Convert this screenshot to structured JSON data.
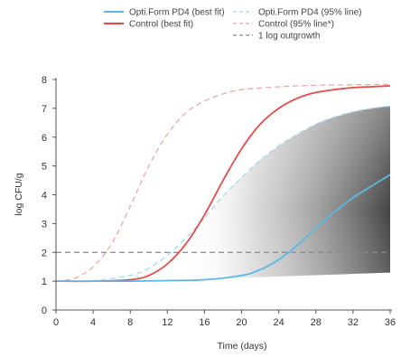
{
  "chart_data": {
    "type": "line",
    "xlabel": "Time (days)",
    "ylabel": "log CFU/g",
    "xlim": [
      0,
      36
    ],
    "ylim": [
      0,
      8
    ],
    "xticks": [
      "0",
      "4",
      "8",
      "12",
      "16",
      "20",
      "24",
      "28",
      "32",
      "36"
    ],
    "yticks": [
      "0",
      "1",
      "2",
      "3",
      "4",
      "5",
      "6",
      "7",
      "8"
    ],
    "grid": false,
    "legend": "top",
    "series": [
      {
        "name": "Opti.Form PD4 (best fit)",
        "style": "solid",
        "color": "#5bb8e6",
        "x": [
          0,
          4,
          8,
          12,
          16,
          20,
          22,
          24,
          26,
          28,
          30,
          32,
          34,
          36
        ],
        "y": [
          1.0,
          1.0,
          1.0,
          1.02,
          1.05,
          1.2,
          1.4,
          1.75,
          2.25,
          2.85,
          3.4,
          3.9,
          4.3,
          4.7
        ]
      },
      {
        "name": "Control (best fit)",
        "style": "solid",
        "color": "#e84a4a",
        "x": [
          0,
          4,
          8,
          10,
          12,
          14,
          16,
          18,
          20,
          22,
          24,
          26,
          28,
          30,
          32,
          34,
          36
        ],
        "y": [
          1.0,
          1.0,
          1.05,
          1.2,
          1.6,
          2.3,
          3.3,
          4.5,
          5.6,
          6.45,
          7.0,
          7.35,
          7.55,
          7.65,
          7.72,
          7.75,
          7.78
        ]
      },
      {
        "name": "Opti.Form PD4 (95% line)",
        "style": "dashed",
        "color": "#a9d8f2",
        "x": [
          0,
          4,
          8,
          10,
          12,
          14,
          16,
          18,
          20,
          22,
          24,
          26,
          28,
          30,
          32,
          34,
          36
        ],
        "y": [
          1.0,
          1.02,
          1.2,
          1.45,
          1.9,
          2.5,
          3.2,
          3.95,
          4.6,
          5.2,
          5.7,
          6.1,
          6.45,
          6.7,
          6.88,
          7.0,
          7.08
        ]
      },
      {
        "name": "Control (95% line*)",
        "style": "dashed",
        "color": "#f4a6a6",
        "x": [
          0,
          2,
          4,
          6,
          8,
          10,
          12,
          14,
          16,
          18,
          20,
          24,
          28,
          32,
          36
        ],
        "y": [
          1.0,
          1.1,
          1.5,
          2.3,
          3.6,
          5.0,
          6.1,
          6.85,
          7.25,
          7.5,
          7.65,
          7.75,
          7.8,
          7.82,
          7.83
        ]
      },
      {
        "name": "1 log outgrowth",
        "style": "dashed",
        "color": "#888888",
        "x": [
          0,
          36
        ],
        "y": [
          2,
          2
        ]
      }
    ]
  }
}
